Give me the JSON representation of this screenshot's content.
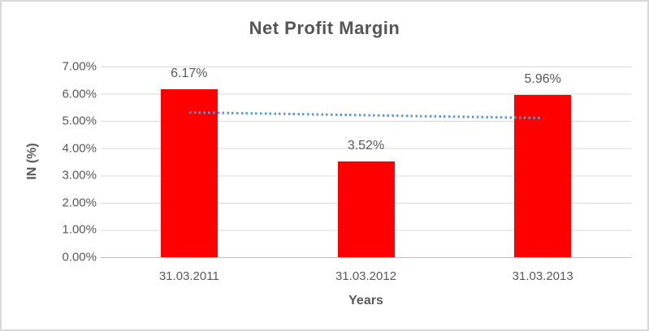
{
  "chart_data": {
    "type": "bar",
    "title": "Net Profit Margin",
    "xlabel": "Years",
    "ylabel": "IN (%)",
    "categories": [
      "31.03.2011",
      "31.03.2012",
      "31.03.2013"
    ],
    "values": [
      6.17,
      3.52,
      5.96
    ],
    "value_labels": [
      "6.17%",
      "3.52%",
      "5.96%"
    ],
    "ytick_labels": [
      "7.00%",
      "6.00%",
      "5.00%",
      "4.00%",
      "3.00%",
      "2.00%",
      "1.00%",
      "0.00%"
    ],
    "ylim": [
      0,
      7
    ],
    "grid": true,
    "legend": false,
    "bar_color": "#ff0000",
    "gridline_color": "#d9d9d9",
    "text_color": "#595959",
    "trendline": {
      "type": "linear",
      "style": "dotted",
      "color": "#5b9bd5",
      "start_value": 5.32,
      "end_value": 5.11
    }
  }
}
